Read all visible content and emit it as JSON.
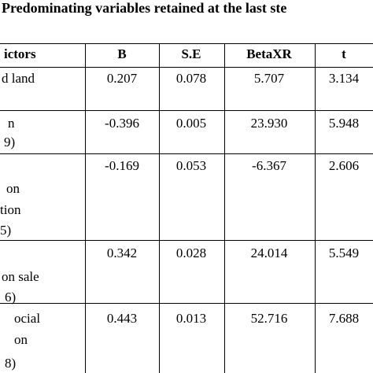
{
  "title": "Predominating variables retained at the last ste",
  "table": {
    "header": [
      "ictors",
      "B",
      "S.E",
      "BetaXR",
      "t"
    ],
    "rows": [
      {
        "label": [
          "d land"
        ],
        "cells": [
          "0.207",
          "0.078",
          "5.707",
          "3.134"
        ]
      },
      {
        "label": [
          "n",
          "9)"
        ],
        "cells": [
          "-0.396",
          "0.005",
          "23.930",
          "5.948"
        ]
      },
      {
        "label": [
          "on",
          "tion",
          " 5)"
        ],
        "cells": [
          "-0.169",
          "0.053",
          "-6.367",
          "2.606"
        ]
      },
      {
        "label": [
          "on sale",
          "6)"
        ],
        "cells": [
          "0.342",
          "0.028",
          "24.014",
          "5.549"
        ]
      },
      {
        "label": [
          "ocial",
          "on",
          "8)"
        ],
        "cells": [
          "0.443",
          "0.013",
          "52.716",
          "7.688"
        ]
      }
    ]
  }
}
